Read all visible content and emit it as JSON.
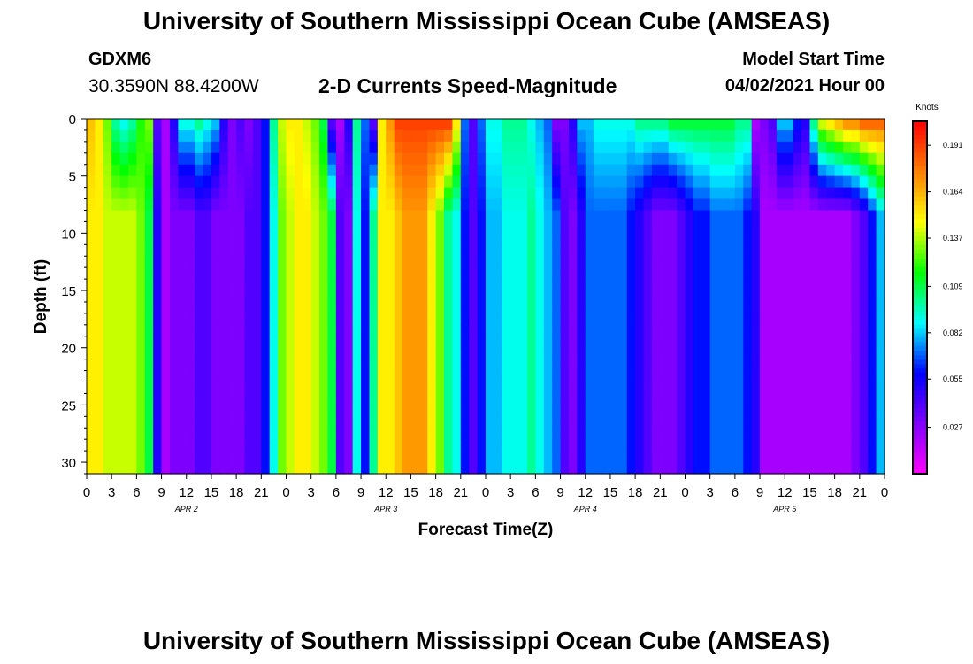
{
  "header": {
    "title": "University of Southern Mississippi Ocean Cube (AMSEAS)",
    "station_id": "GDXM6",
    "station_coords": "30.3590N  88.4200W",
    "variable_title": "2-D Currents Speed-Magnitude",
    "start_time_label": "Model Start Time",
    "start_time_value": "04/02/2021 Hour 00"
  },
  "footer": {
    "title": "University of Southern Mississippi Ocean Cube (AMSEAS)"
  },
  "colors": {
    "scale": [
      "#ff00ff",
      "#8000ff",
      "#0000ff",
      "#00ffff",
      "#00ff00",
      "#ffff00",
      "#ff8000",
      "#ff0000"
    ]
  },
  "chart_data": {
    "type": "heatmap",
    "title": "2-D Currents Speed-Magnitude",
    "xlabel": "Forecast Time(Z)",
    "ylabel": "Depth (ft)",
    "x_unit": "hours since 04/02/2021 00Z",
    "xlim": [
      0,
      96
    ],
    "ylim": [
      31,
      0
    ],
    "x_tick_hours": [
      0,
      3,
      6,
      9,
      12,
      15,
      18,
      21,
      24,
      27,
      30,
      33,
      36,
      39,
      42,
      45,
      48,
      51,
      54,
      57,
      60,
      63,
      66,
      69,
      72,
      75,
      78,
      81,
      84,
      87,
      90,
      93,
      96
    ],
    "x_tick_labels": [
      "0",
      "3",
      "6",
      "9",
      "12",
      "15",
      "18",
      "21",
      "0",
      "3",
      "6",
      "9",
      "12",
      "15",
      "18",
      "21",
      "0",
      "3",
      "6",
      "9",
      "12",
      "15",
      "18",
      "21",
      "0",
      "3",
      "6",
      "9",
      "12",
      "15",
      "18",
      "21",
      "0"
    ],
    "day_labels": [
      {
        "label": "APR  2",
        "hour": 12
      },
      {
        "label": "APR  3",
        "hour": 36
      },
      {
        "label": "APR  4",
        "hour": 60
      },
      {
        "label": "APR  5",
        "hour": 84
      }
    ],
    "y_ticks": [
      0,
      5,
      10,
      15,
      20,
      25,
      30
    ],
    "colorbar": {
      "label": "Knots",
      "min": 0.0,
      "max": 0.205,
      "tick_values": [
        0.027,
        0.055,
        0.082,
        0.109,
        0.137,
        0.164,
        0.191
      ]
    },
    "speed_profile": {
      "hours": [
        0,
        1,
        2,
        3,
        4,
        5,
        6,
        7,
        8,
        9,
        10,
        11,
        12,
        13,
        14,
        15,
        16,
        17,
        18,
        19,
        20,
        21,
        22,
        23,
        24,
        25,
        26,
        27,
        28,
        29,
        30,
        31,
        32,
        33,
        34,
        35,
        36,
        37,
        38,
        39,
        40,
        41,
        42,
        43,
        44,
        45,
        46,
        47,
        48,
        49,
        50,
        51,
        52,
        53,
        54,
        55,
        56,
        57,
        58,
        59,
        60,
        61,
        62,
        63,
        64,
        65,
        66,
        67,
        68,
        69,
        70,
        71,
        72,
        73,
        74,
        75,
        76,
        77,
        78,
        79,
        80,
        81,
        82,
        83,
        84,
        85,
        86,
        87,
        88,
        89,
        90,
        91,
        92,
        93,
        94,
        95,
        96
      ],
      "surface": [
        0.16,
        0.15,
        0.13,
        0.1,
        0.09,
        0.1,
        0.12,
        0.13,
        0.04,
        0.02,
        0.05,
        0.09,
        0.09,
        0.1,
        0.09,
        0.08,
        0.05,
        0.03,
        0.04,
        0.03,
        0.04,
        0.06,
        0.1,
        0.14,
        0.15,
        0.15,
        0.14,
        0.13,
        0.11,
        0.04,
        0.02,
        0.05,
        0.1,
        0.07,
        0.04,
        0.15,
        0.17,
        0.19,
        0.19,
        0.19,
        0.19,
        0.19,
        0.19,
        0.19,
        0.15,
        0.07,
        0.04,
        0.07,
        0.09,
        0.09,
        0.1,
        0.1,
        0.1,
        0.09,
        0.08,
        0.07,
        0.03,
        0.03,
        0.05,
        0.08,
        0.08,
        0.09,
        0.09,
        0.09,
        0.09,
        0.09,
        0.1,
        0.1,
        0.1,
        0.1,
        0.11,
        0.11,
        0.11,
        0.11,
        0.11,
        0.11,
        0.11,
        0.11,
        0.1,
        0.1,
        0.02,
        0.03,
        0.04,
        0.08,
        0.08,
        0.06,
        0.05,
        0.1,
        0.14,
        0.15,
        0.16,
        0.17,
        0.17,
        0.18,
        0.18,
        0.18,
        0.18
      ],
      "bottom": [
        0.15,
        0.15,
        0.14,
        0.14,
        0.14,
        0.14,
        0.13,
        0.11,
        0.05,
        0.02,
        0.03,
        0.03,
        0.03,
        0.04,
        0.04,
        0.03,
        0.03,
        0.03,
        0.03,
        0.04,
        0.04,
        0.06,
        0.09,
        0.13,
        0.14,
        0.15,
        0.15,
        0.14,
        0.13,
        0.11,
        0.04,
        0.03,
        0.09,
        0.06,
        0.1,
        0.15,
        0.15,
        0.16,
        0.17,
        0.17,
        0.17,
        0.15,
        0.13,
        0.1,
        0.09,
        0.06,
        0.04,
        0.06,
        0.08,
        0.08,
        0.09,
        0.09,
        0.09,
        0.1,
        0.09,
        0.08,
        0.07,
        0.04,
        0.03,
        0.05,
        0.07,
        0.07,
        0.07,
        0.07,
        0.07,
        0.06,
        0.05,
        0.04,
        0.03,
        0.03,
        0.03,
        0.04,
        0.05,
        0.06,
        0.06,
        0.07,
        0.07,
        0.07,
        0.07,
        0.06,
        0.05,
        0.02,
        0.02,
        0.02,
        0.02,
        0.02,
        0.02,
        0.02,
        0.02,
        0.02,
        0.02,
        0.02,
        0.03,
        0.04,
        0.06,
        0.08,
        0.09
      ]
    }
  }
}
